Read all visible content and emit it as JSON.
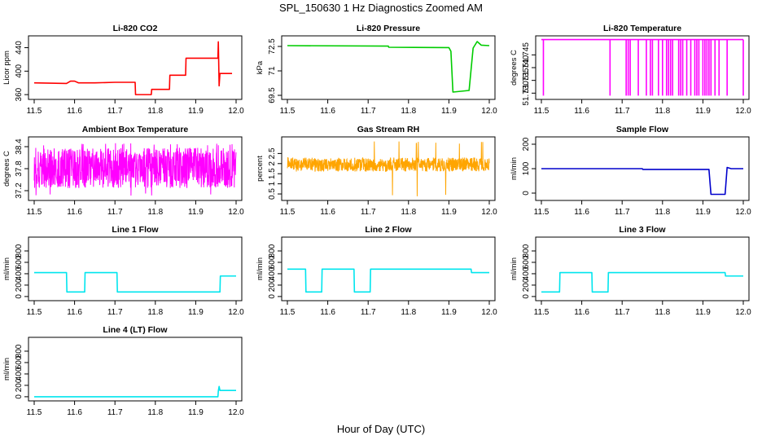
{
  "figure": {
    "title": "SPL_150630  1 Hz Diagnostics Zoomed AM",
    "xlabel": "Hour of Day (UTC)"
  },
  "chart_data": [
    {
      "id": "co2",
      "type": "line",
      "title": "Li-820 CO2",
      "ylabel": "Licor ppm",
      "color": "#ff0000",
      "xlim": [
        11.5,
        12.0
      ],
      "ylim": [
        356,
        456
      ],
      "xticks": [
        11.5,
        11.6,
        11.7,
        11.8,
        11.9,
        12.0
      ],
      "yticks": [
        360,
        400,
        440
      ],
      "x": [
        11.5,
        11.58,
        11.59,
        11.6,
        11.61,
        11.65,
        11.7,
        11.75,
        11.751,
        11.79,
        11.791,
        11.835,
        11.836,
        11.875,
        11.876,
        11.955,
        11.956,
        11.958,
        11.96,
        11.99
      ],
      "y": [
        380,
        379,
        383,
        383,
        380,
        380,
        381,
        381,
        360,
        360,
        369,
        369,
        393,
        393,
        422,
        422,
        450,
        375,
        396,
        396
      ]
    },
    {
      "id": "pressure",
      "type": "line",
      "title": "Li-820 Pressure",
      "ylabel": "kPa",
      "color": "#00cc00",
      "xlim": [
        11.5,
        12.0
      ],
      "ylim": [
        69.4,
        73.0
      ],
      "xticks": [
        11.5,
        11.6,
        11.7,
        11.8,
        11.9,
        12.0
      ],
      "yticks": [
        69.5,
        71.0,
        72.5
      ],
      "x": [
        11.5,
        11.75,
        11.751,
        11.9,
        11.905,
        11.91,
        11.95,
        11.96,
        11.97,
        11.98,
        12.0
      ],
      "y": [
        72.55,
        72.52,
        72.45,
        72.43,
        72.2,
        69.7,
        69.8,
        72.4,
        72.8,
        72.58,
        72.55
      ]
    },
    {
      "id": "temp",
      "type": "line",
      "title": "Li-820 Temperature",
      "ylabel": "degrees C",
      "color": "#ff00ff",
      "xlim": [
        11.5,
        12.0
      ],
      "ylim": [
        51.7285,
        51.7515
      ],
      "xticks": [
        11.5,
        11.6,
        11.7,
        11.8,
        11.9,
        12.0
      ],
      "yticks": [
        51.73,
        51.735,
        51.74,
        51.745
      ],
      "yticklabels": [
        "51.730",
        "51.735",
        "51.740",
        "51.745"
      ],
      "high": 51.751,
      "low": 51.729,
      "spikes": [
        11.505,
        11.67,
        11.71,
        11.715,
        11.72,
        11.74,
        11.76,
        11.77,
        11.775,
        11.79,
        11.8,
        11.81,
        11.815,
        11.82,
        11.825,
        11.84,
        11.845,
        11.85,
        11.86,
        11.87,
        11.88,
        11.885,
        11.89,
        11.9,
        11.905,
        11.91,
        11.915,
        11.92,
        11.93,
        11.94,
        11.96,
        12.0
      ]
    },
    {
      "id": "boxtemp",
      "type": "line",
      "title": "Ambient Box Temperature",
      "ylabel": "degrees C",
      "color": "#ff00ff",
      "xlim": [
        11.5,
        12.0
      ],
      "ylim": [
        37.0,
        38.6
      ],
      "xticks": [
        11.5,
        11.6,
        11.7,
        11.8,
        11.9,
        12.0
      ],
      "yticks": [
        37.2,
        37.8,
        38.4
      ],
      "noise": {
        "center": 37.82,
        "amplitude": 0.55,
        "outlier_min": 37.05,
        "outlier_max": 38.5
      }
    },
    {
      "id": "rh",
      "type": "line",
      "title": "Gas Stream RH",
      "ylabel": "percent",
      "color": "#ffa500",
      "xlim": [
        11.5,
        12.0
      ],
      "ylim": [
        0.3,
        3.2
      ],
      "xticks": [
        11.5,
        11.6,
        11.7,
        11.8,
        11.9,
        12.0
      ],
      "yticks": [
        0.5,
        1.0,
        1.5,
        2.0,
        2.5
      ],
      "noise": {
        "center": 1.95,
        "amplitude": 0.35,
        "outlier_min": 0.35,
        "outlier_max": 3.1
      }
    },
    {
      "id": "sample",
      "type": "line",
      "title": "Sample Flow",
      "ylabel": "ml/min",
      "color": "#0000cc",
      "xlim": [
        11.5,
        12.0
      ],
      "ylim": [
        -20,
        220
      ],
      "xticks": [
        11.5,
        11.6,
        11.7,
        11.8,
        11.9,
        12.0
      ],
      "yticks": [
        0,
        100,
        200
      ],
      "x": [
        11.5,
        11.75,
        11.751,
        11.915,
        11.92,
        11.955,
        11.96,
        11.97,
        12.0
      ],
      "y": [
        100,
        100,
        97,
        97,
        -5,
        -5,
        105,
        100,
        100
      ]
    },
    {
      "id": "line1",
      "type": "line",
      "title": "Line 1 Flow",
      "ylabel": "ml/min",
      "color": "#00e5ee",
      "xlim": [
        11.5,
        12.0
      ],
      "ylim": [
        -30,
        1000
      ],
      "xticks": [
        11.5,
        11.6,
        11.7,
        11.8,
        11.9,
        12.0
      ],
      "yticks": [
        0,
        200,
        400,
        600,
        800
      ],
      "x": [
        11.5,
        11.58,
        11.581,
        11.625,
        11.626,
        11.705,
        11.706,
        11.96,
        11.961,
        12.0
      ],
      "y": [
        420,
        420,
        80,
        80,
        420,
        420,
        80,
        80,
        360,
        360
      ]
    },
    {
      "id": "line2",
      "type": "line",
      "title": "Line 2 Flow",
      "ylabel": "ml/min",
      "color": "#00e5ee",
      "xlim": [
        11.5,
        12.0
      ],
      "ylim": [
        -30,
        1000
      ],
      "xticks": [
        11.5,
        11.6,
        11.7,
        11.8,
        11.9,
        12.0
      ],
      "yticks": [
        0,
        200,
        400,
        600,
        800
      ],
      "x": [
        11.5,
        11.545,
        11.546,
        11.585,
        11.586,
        11.665,
        11.666,
        11.705,
        11.706,
        11.955,
        11.956,
        12.0
      ],
      "y": [
        480,
        480,
        80,
        80,
        480,
        480,
        80,
        80,
        480,
        480,
        420,
        420
      ]
    },
    {
      "id": "line3",
      "type": "line",
      "title": "Line 3 Flow",
      "ylabel": "ml/min",
      "color": "#00e5ee",
      "xlim": [
        11.5,
        12.0
      ],
      "ylim": [
        -30,
        1000
      ],
      "xticks": [
        11.5,
        11.6,
        11.7,
        11.8,
        11.9,
        12.0
      ],
      "yticks": [
        0,
        200,
        400,
        600,
        800
      ],
      "x": [
        11.5,
        11.545,
        11.546,
        11.625,
        11.626,
        11.665,
        11.666,
        11.955,
        11.956,
        12.0
      ],
      "y": [
        80,
        80,
        420,
        420,
        80,
        80,
        420,
        420,
        360,
        360
      ]
    },
    {
      "id": "line4",
      "type": "line",
      "title": "Line 4 (LT) Flow",
      "ylabel": "ml/min",
      "color": "#00e5ee",
      "xlim": [
        11.5,
        12.0
      ],
      "ylim": [
        -30,
        1000
      ],
      "xticks": [
        11.5,
        11.6,
        11.7,
        11.8,
        11.9,
        12.0
      ],
      "yticks": [
        0,
        200,
        400,
        600,
        800
      ],
      "x": [
        11.5,
        11.955,
        11.956,
        11.958,
        11.96,
        12.0
      ],
      "y": [
        0,
        0,
        100,
        180,
        110,
        110
      ]
    }
  ]
}
